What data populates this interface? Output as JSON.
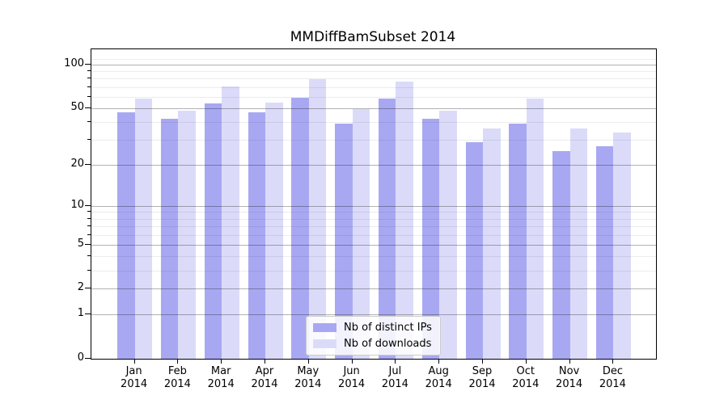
{
  "chart_data": {
    "type": "bar",
    "title": "MMDiffBamSubset 2014",
    "categories": [
      "Jan",
      "Feb",
      "Mar",
      "Apr",
      "May",
      "Jun",
      "Jul",
      "Aug",
      "Sep",
      "Oct",
      "Nov",
      "Dec"
    ],
    "x_tick_second_line": "2014",
    "series": [
      {
        "name": "Nb of distinct IPs",
        "color": "#a8a8f2",
        "values": [
          47,
          42,
          54,
          47,
          59,
          39,
          58,
          42,
          29,
          39,
          25,
          27
        ]
      },
      {
        "name": "Nb of downloads",
        "color": "#dbdbf9",
        "values": [
          58,
          48,
          71,
          55,
          79,
          49,
          76,
          48,
          36,
          58,
          36,
          34
        ]
      }
    ],
    "ylabel": "",
    "xlabel": "",
    "y_scale": "log1p",
    "y_tick_values": [
      0,
      1,
      2,
      5,
      10,
      20,
      50,
      100
    ],
    "y_tick_labels": [
      "0",
      "1",
      "2",
      "5",
      "10",
      "20",
      "50",
      "100"
    ],
    "y_minor_tick_values": [
      3,
      4,
      6,
      7,
      8,
      9,
      30,
      40,
      60,
      70,
      80,
      90,
      110
    ],
    "ylim": [
      0,
      127
    ],
    "grid": "major+minor horizontal, drawn above bars",
    "legend_position": "lower center"
  },
  "legend": {
    "entries": [
      {
        "label": "Nb of distinct IPs",
        "color": "#a8a8f2"
      },
      {
        "label": "Nb of downloads",
        "color": "#dbdbf9"
      }
    ]
  },
  "colors": {
    "series_ips": "#a8a8f2",
    "series_downloads": "#dbdbf9",
    "spine": "#000000",
    "grid_major": "rgba(0,0,0,0.30)",
    "grid_minor": "rgba(0,0,0,0.075)",
    "background": "#ffffff",
    "legend_border": "#cccccc"
  }
}
